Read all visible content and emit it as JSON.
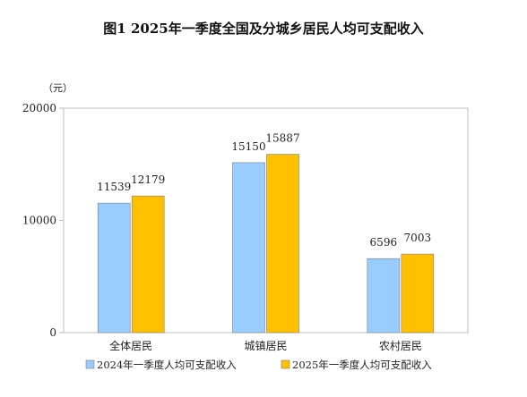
{
  "title": "图1    2025年一季度全国及分城乡居民人均可支配收入",
  "chart_data": {
    "type": "bar",
    "title": "图1    2025年一季度全国及分城乡居民人均可支配收入",
    "unit": "（元）",
    "categories": [
      "全体居民",
      "城镇居民",
      "农村居民"
    ],
    "series": [
      {
        "name": "2024年一季度人均可支配收入",
        "values": [
          11539,
          15150,
          6596
        ],
        "color": "#99CCFF"
      },
      {
        "name": "2025年一季度人均可支配收入",
        "values": [
          12179,
          15887,
          7003
        ],
        "color": "#FFC000"
      }
    ],
    "yticks": [
      0,
      10000,
      20000
    ],
    "ylim": [
      0,
      20000
    ],
    "grid": false,
    "legend_position": "bottom"
  }
}
